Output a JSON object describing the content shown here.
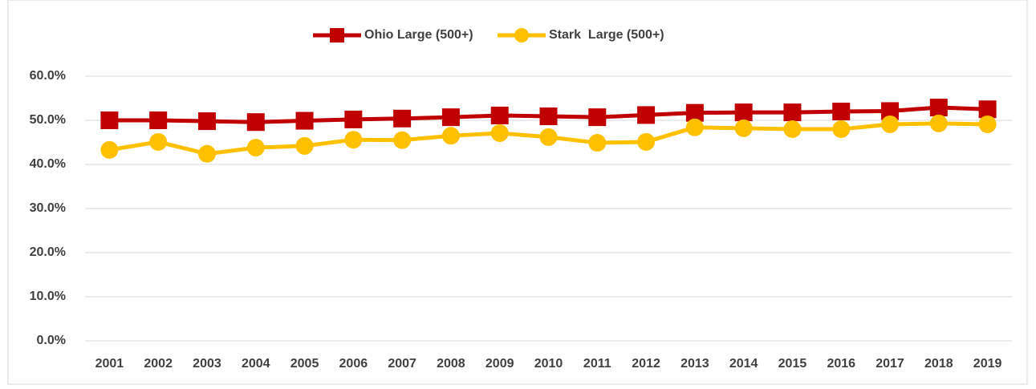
{
  "chart_data": {
    "type": "line",
    "categories": [
      "2001",
      "2002",
      "2003",
      "2004",
      "2005",
      "2006",
      "2007",
      "2008",
      "2009",
      "2010",
      "2011",
      "2012",
      "2013",
      "2014",
      "2015",
      "2016",
      "2017",
      "2018",
      "2019"
    ],
    "series": [
      {
        "name": "Ohio Large (500+)",
        "color": "#c00000",
        "marker": "square",
        "values": [
          50.0,
          50.0,
          49.8,
          49.6,
          49.9,
          50.2,
          50.4,
          50.7,
          51.1,
          50.9,
          50.7,
          51.2,
          51.7,
          51.8,
          51.8,
          52.0,
          52.1,
          52.9,
          52.5
        ]
      },
      {
        "name": "Stark  Large (500+)",
        "color": "#ffc000",
        "marker": "circle",
        "values": [
          43.3,
          45.1,
          42.4,
          43.8,
          44.2,
          45.6,
          45.5,
          46.5,
          47.1,
          46.2,
          44.9,
          45.1,
          48.4,
          48.2,
          48.0,
          48.0,
          49.1,
          49.3,
          49.1
        ]
      }
    ],
    "ylim": [
      0,
      60
    ],
    "yticks": [
      {
        "value": 0,
        "label": "0.0%"
      },
      {
        "value": 10,
        "label": "10.0%"
      },
      {
        "value": 20,
        "label": "20.0%"
      },
      {
        "value": 30,
        "label": "30.0%"
      },
      {
        "value": 40,
        "label": "40.0%"
      },
      {
        "value": 50,
        "label": "50.0%"
      },
      {
        "value": 60,
        "label": "60.0%"
      }
    ],
    "grid": true,
    "legend": "top"
  }
}
